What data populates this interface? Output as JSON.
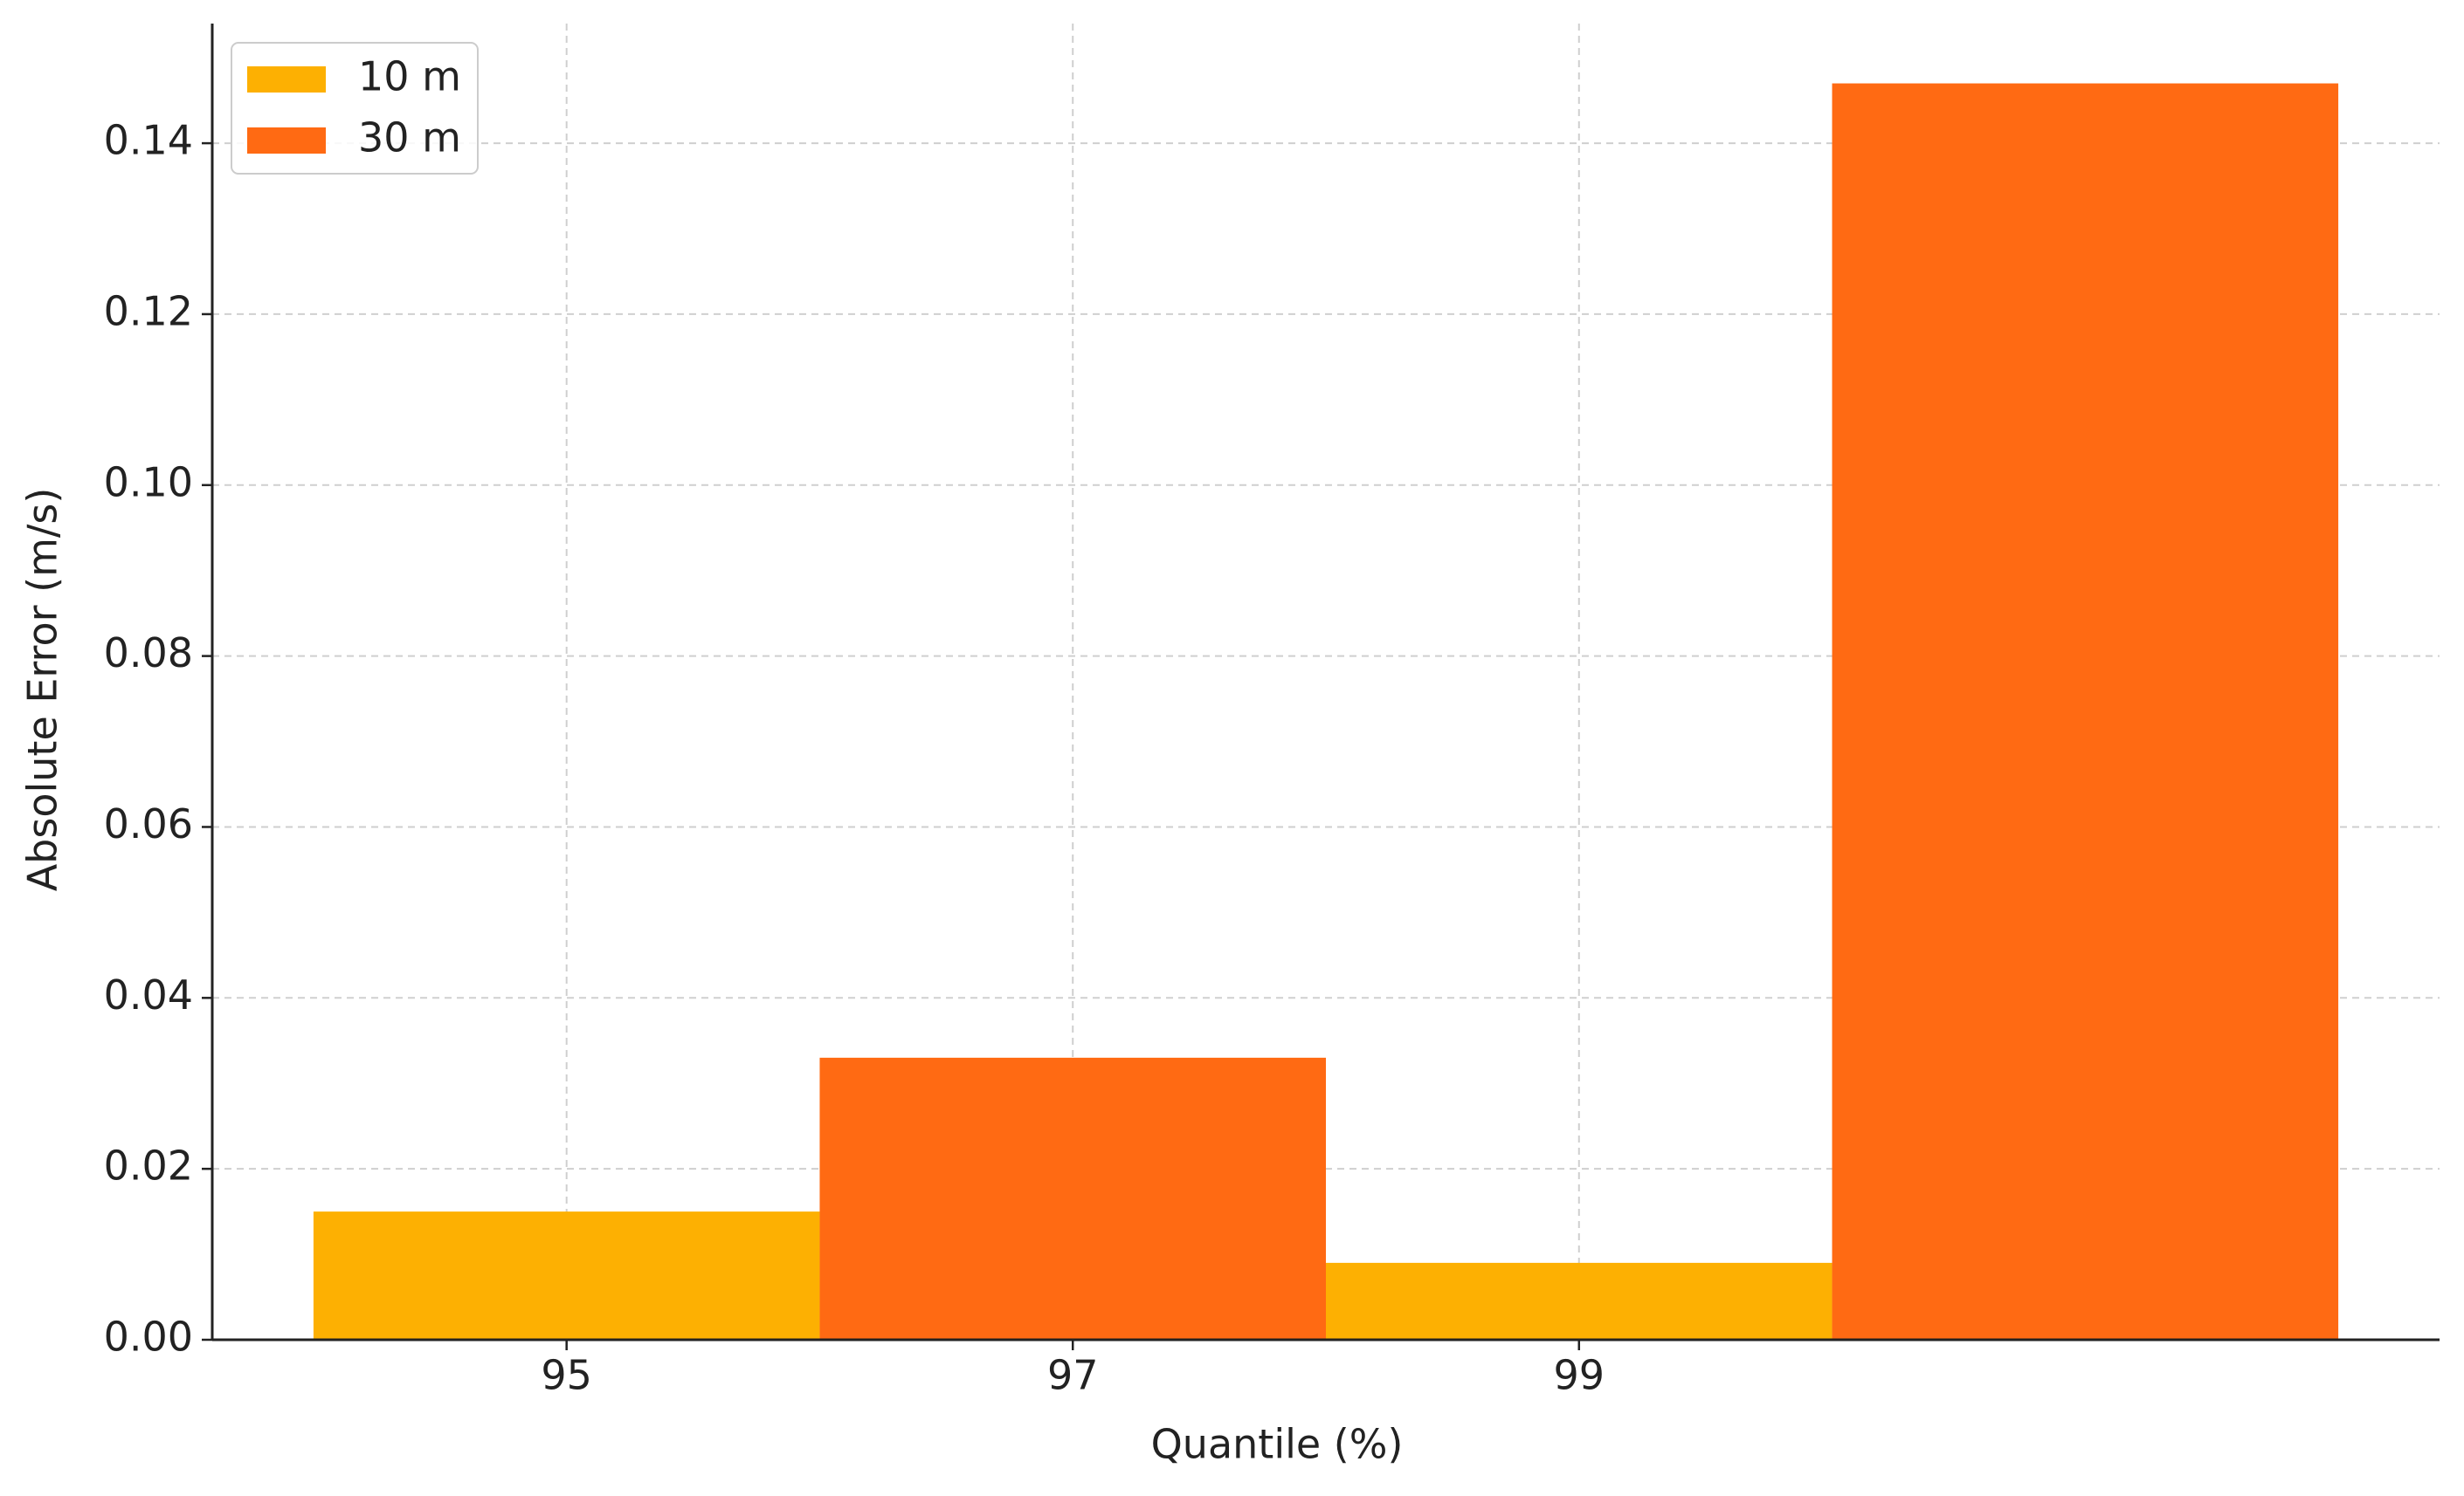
{
  "chart_data": {
    "type": "bar",
    "x_label": "Quantile (%)",
    "y_label": "Absolute Error (m/s)",
    "series": [
      {
        "name": "10 m",
        "color": "#fdb002",
        "x": [
          95,
          99
        ],
        "values": [
          0.015,
          0.009
        ]
      },
      {
        "name": "30 m",
        "color": "#ff6a13",
        "x": [
          97,
          101
        ],
        "values": [
          0.033,
          0.147
        ]
      }
    ],
    "xlim": [
      93.6,
      102.4
    ],
    "xticks": [
      95,
      97,
      99
    ],
    "ylim": [
      0,
      0.154
    ],
    "yticks": [
      {
        "value": 0,
        "label": "0.00"
      },
      {
        "value": 0.02,
        "label": "0.02"
      },
      {
        "value": 0.04,
        "label": "0.04"
      },
      {
        "value": 0.06,
        "label": "0.06"
      },
      {
        "value": 0.08,
        "label": "0.08"
      },
      {
        "value": 0.1,
        "label": "0.10"
      },
      {
        "value": 0.12,
        "label": "0.12"
      },
      {
        "value": 0.14,
        "label": "0.14"
      }
    ],
    "grid": true,
    "legend": "upper-left"
  }
}
